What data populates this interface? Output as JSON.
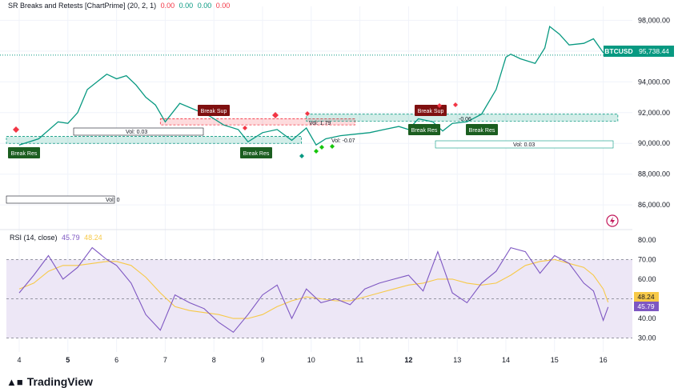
{
  "indicator_legend": {
    "name": "SR Breaks and Retests [ChartPrime] (20, 2, 1)",
    "values": [
      "0.00",
      "0.00",
      "0.00",
      "0.00"
    ],
    "value_colors": [
      "#f23645",
      "#089981",
      "#089981",
      "#f23645"
    ]
  },
  "rsi_legend": {
    "name": "RSI (14, close)",
    "values": [
      "45.79",
      "48.24"
    ],
    "value_colors": [
      "#7e57c2",
      "#f7c948"
    ]
  },
  "symbol_tag": {
    "symbol": "BTCUSD",
    "price": "95,738.44"
  },
  "rsi_tags": {
    "ma": "48.24",
    "rsi": "45.79"
  },
  "annotations": {
    "vol_labels": [
      "Vol: 0.03",
      "Vol: 0",
      "Vol: 1.79",
      "Vol: -0.07",
      "Vol: 0.03",
      "-0.06"
    ],
    "break_res": [
      "Break Res",
      "Break Res",
      "Break Res",
      "Break Res"
    ],
    "break_sup": [
      "Break Sup",
      "Break Sup"
    ]
  },
  "footer": {
    "brand": "TradingView"
  },
  "colors": {
    "up": "#089981",
    "down": "#f23645",
    "rsi": "#7e57c2",
    "rsi_ma": "#f7c948",
    "rsi_band": "#ede7f6"
  },
  "chart_data": [
    {
      "type": "candlestick",
      "series": [
        {
          "name": "BTCUSD"
        }
      ],
      "x_ticks": [
        "4",
        "5",
        "6",
        "7",
        "8",
        "9",
        "10",
        "11",
        "12",
        "13",
        "14",
        "15",
        "16"
      ],
      "y_ticks": [
        "86,000.00",
        "88,000.00",
        "90,000.00",
        "92,000.00",
        "94,000.00",
        "96,000.00",
        "98,000.00"
      ],
      "ylim": [
        84500,
        98800
      ],
      "last_price": 95738.44,
      "path_x": [
        4.0,
        4.4,
        4.8,
        5.0,
        5.2,
        5.4,
        5.8,
        6.0,
        6.2,
        6.4,
        6.6,
        6.8,
        7.0,
        7.3,
        7.6,
        7.9,
        8.2,
        8.5,
        8.7,
        9.0,
        9.3,
        9.6,
        9.9,
        10.1,
        10.3,
        10.6,
        10.9,
        11.2,
        11.5,
        11.8,
        12.0,
        12.2,
        12.5,
        12.7,
        12.9,
        13.2,
        13.5,
        13.8,
        14.0,
        14.1,
        14.3,
        14.6,
        14.8,
        14.9,
        15.1,
        15.3,
        15.6,
        15.8,
        16.0,
        16.1
      ],
      "path_y": [
        89900,
        90300,
        91400,
        91300,
        92000,
        93500,
        94500,
        94200,
        94400,
        93800,
        93000,
        92500,
        91400,
        92600,
        92200,
        91800,
        91200,
        90900,
        90100,
        90700,
        90900,
        90200,
        91000,
        89900,
        90300,
        90500,
        90600,
        90700,
        90900,
        91100,
        90900,
        91600,
        91400,
        90800,
        91300,
        91400,
        91900,
        93500,
        95600,
        95800,
        95500,
        95200,
        96200,
        97600,
        97100,
        96400,
        96500,
        96800,
        95900,
        95738
      ],
      "sr_zones": [
        {
          "from": 4.0,
          "to": 9.8,
          "low": 90000,
          "high": 90450,
          "kind": "support"
        },
        {
          "from": 6.9,
          "to": 10.9,
          "low": 91200,
          "high": 91600,
          "kind": "resistance"
        },
        {
          "from": 9.9,
          "to": 16.3,
          "low": 91450,
          "high": 91900,
          "kind": "support"
        }
      ]
    },
    {
      "type": "line",
      "title": "RSI (14, close)",
      "series": [
        {
          "name": "RSI"
        },
        {
          "name": "RSI MA"
        }
      ],
      "y_ticks": [
        "30.00",
        "40.00",
        "50.00",
        "60.00",
        "70.00",
        "80.00"
      ],
      "ylim": [
        27,
        84
      ],
      "band": [
        30,
        70
      ],
      "midline": 50,
      "rsi_x": [
        4.0,
        4.3,
        4.6,
        4.9,
        5.2,
        5.5,
        5.8,
        6.0,
        6.3,
        6.6,
        6.9,
        7.2,
        7.5,
        7.8,
        8.1,
        8.4,
        8.7,
        9.0,
        9.3,
        9.6,
        9.9,
        10.2,
        10.5,
        10.8,
        11.1,
        11.4,
        11.7,
        12.0,
        12.3,
        12.6,
        12.9,
        13.2,
        13.5,
        13.8,
        14.1,
        14.4,
        14.7,
        15.0,
        15.3,
        15.6,
        15.8,
        16.0,
        16.1
      ],
      "rsi_y": [
        53,
        62,
        72,
        60,
        66,
        76,
        70,
        67,
        58,
        42,
        34,
        52,
        48,
        45,
        38,
        33,
        42,
        52,
        57,
        40,
        55,
        48,
        50,
        47,
        55,
        58,
        60,
        62,
        54,
        74,
        53,
        48,
        58,
        64,
        76,
        74,
        63,
        72,
        68,
        58,
        54,
        39,
        45.79
      ],
      "ma_y": [
        55,
        58,
        64,
        67,
        67,
        68,
        69,
        69,
        67,
        61,
        53,
        46,
        44,
        43,
        42,
        40,
        40,
        42,
        46,
        49,
        51,
        50,
        49,
        49,
        51,
        53,
        55,
        57,
        58,
        60,
        60,
        58,
        57,
        58,
        62,
        67,
        69,
        70,
        68,
        66,
        62,
        55,
        48.24
      ]
    }
  ]
}
